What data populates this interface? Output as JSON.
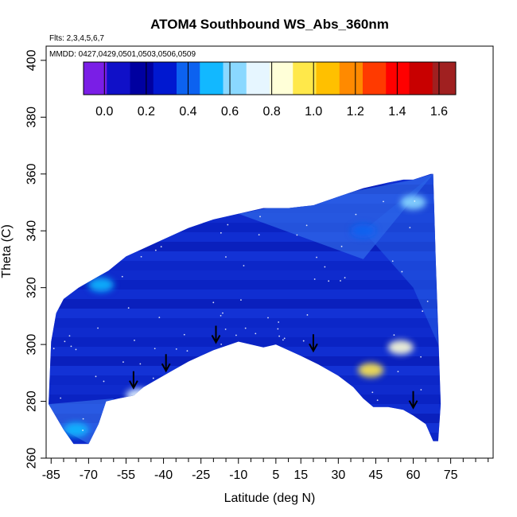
{
  "chart_data": {
    "type": "heatmap",
    "title": "ATOM4 Southbound WS_Abs_360nm",
    "flights_note": "Flts: 2,3,4,5,6,7",
    "dates_note": "MMDD: 0427,0429,0501,0503,0506,0509",
    "xlabel": "Latitude (deg N)",
    "ylabel": "Theta (C)",
    "xlim": [
      -87,
      92
    ],
    "ylim": [
      260,
      405
    ],
    "x_ticks": [
      -85,
      -70,
      -55,
      -40,
      -25,
      -10,
      5,
      15,
      30,
      45,
      60,
      75
    ],
    "y_ticks": [
      260,
      280,
      300,
      320,
      340,
      360,
      380,
      400
    ],
    "colorbar": {
      "orientation": "horizontal",
      "placement": "top-left inside plot",
      "range": [
        -0.1,
        1.68
      ],
      "ticks": [
        0.0,
        0.2,
        0.4,
        0.6,
        0.8,
        1.0,
        1.2,
        1.4,
        1.6
      ],
      "tick_labels": [
        "0.0",
        "0.2",
        "0.4",
        "0.6",
        "0.8",
        "1.0",
        "1.2",
        "1.4",
        "1.6"
      ],
      "colors": [
        "#7a1ee6",
        "#1010c8",
        "#0000a0",
        "#0018d0",
        "#0c62f0",
        "#12b8ff",
        "#8ad8ff",
        "#e6f6ff",
        "#ffffd8",
        "#ffe84a",
        "#ffc000",
        "#ff8a00",
        "#ff3a00",
        "#ff0000",
        "#c80000",
        "#a02020"
      ]
    },
    "domain_top": [
      [
        -86,
        279
      ],
      [
        -85,
        301
      ],
      [
        -83,
        311
      ],
      [
        -80,
        316
      ],
      [
        -74,
        320
      ],
      [
        -68,
        323
      ],
      [
        -62,
        326
      ],
      [
        -55,
        331
      ],
      [
        -50,
        333
      ],
      [
        -40,
        337
      ],
      [
        -30,
        341
      ],
      [
        -20,
        344
      ],
      [
        -10,
        346
      ],
      [
        0,
        348
      ],
      [
        10,
        348
      ],
      [
        20,
        349
      ],
      [
        30,
        352
      ],
      [
        40,
        355
      ],
      [
        50,
        357
      ],
      [
        56,
        358
      ],
      [
        60,
        358
      ],
      [
        67,
        360
      ],
      [
        68,
        360
      ]
    ],
    "domain_bottom": [
      [
        -86,
        279
      ],
      [
        -80,
        270
      ],
      [
        -76,
        265
      ],
      [
        -70,
        265
      ],
      [
        -66,
        272
      ],
      [
        -63,
        280
      ],
      [
        -58,
        281
      ],
      [
        -52,
        282
      ],
      [
        -48,
        285
      ],
      [
        -44,
        287
      ],
      [
        -38,
        290
      ],
      [
        -30,
        294
      ],
      [
        -20,
        298
      ],
      [
        -10,
        301
      ],
      [
        0,
        299
      ],
      [
        5,
        300
      ],
      [
        10,
        298
      ],
      [
        15,
        296
      ],
      [
        22,
        293
      ],
      [
        30,
        289
      ],
      [
        36,
        285
      ],
      [
        40,
        281
      ],
      [
        44,
        278
      ],
      [
        50,
        278
      ],
      [
        56,
        277
      ],
      [
        60,
        275
      ],
      [
        65,
        272
      ],
      [
        68,
        266
      ],
      [
        70,
        266
      ],
      [
        71,
        279
      ],
      [
        69,
        330
      ],
      [
        68,
        360
      ]
    ],
    "hotspots": [
      {
        "lat": 43,
        "theta": 291,
        "value": 1.0
      },
      {
        "lat": 55,
        "theta": 299,
        "value": 0.85
      },
      {
        "lat": -50,
        "theta": 282,
        "value": 0.75
      },
      {
        "lat": -65,
        "theta": 321,
        "value": 0.55
      },
      {
        "lat": 60,
        "theta": 350,
        "value": 0.6
      },
      {
        "lat": 40,
        "theta": 340,
        "value": 0.45
      },
      {
        "lat": -75,
        "theta": 270,
        "value": 0.5
      }
    ],
    "arrows": [
      {
        "lat": -52,
        "theta": 285
      },
      {
        "lat": -39,
        "theta": 291
      },
      {
        "lat": -19,
        "theta": 301
      },
      {
        "lat": 20,
        "theta": 298
      },
      {
        "lat": 60,
        "theta": 278
      }
    ]
  }
}
